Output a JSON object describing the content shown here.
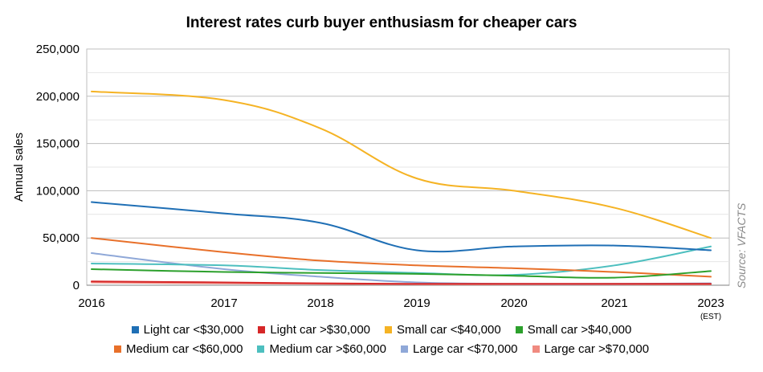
{
  "chart_data": {
    "type": "line",
    "title": "Interest rates curb buyer enthusiasm for cheaper cars",
    "ylabel": "Annual sales",
    "xlabel": "",
    "source": "Source: VFACTS",
    "ylim": [
      0,
      250000
    ],
    "yticks": [
      "0",
      "50,000",
      "100,000",
      "150,000",
      "200,000",
      "250,000"
    ],
    "ytick_values": [
      0,
      50000,
      100000,
      150000,
      200000,
      250000
    ],
    "x_categories": [
      "2016",
      "2017",
      "2018",
      "2019",
      "2020",
      "2021",
      "2023"
    ],
    "x_sublabel": "(EST)",
    "grid": true,
    "legend_position": "bottom",
    "series": [
      {
        "name": "Light car <$30,000",
        "color": "#1f6fb5",
        "values": [
          88000,
          76000,
          66000,
          37000,
          41000,
          42000,
          37000
        ]
      },
      {
        "name": "Light car >$30,000",
        "color": "#d62728",
        "values": [
          4000,
          3000,
          2000,
          1500,
          1500,
          1500,
          1500
        ]
      },
      {
        "name": "Small car <$40,000",
        "color": "#f5b324",
        "values": [
          205000,
          196000,
          166000,
          113000,
          100000,
          82000,
          50000
        ]
      },
      {
        "name": "Small car >$40,000",
        "color": "#2ca02c",
        "values": [
          17000,
          14000,
          13000,
          12000,
          10000,
          8000,
          15000
        ]
      },
      {
        "name": "Medium car <$60,000",
        "color": "#e8702a",
        "values": [
          50000,
          35000,
          26000,
          21000,
          18000,
          14000,
          9000
        ]
      },
      {
        "name": "Medium car >$60,000",
        "color": "#4dbfbf",
        "values": [
          23000,
          21000,
          16000,
          13000,
          11000,
          21000,
          41000
        ]
      },
      {
        "name": "Large car <$70,000",
        "color": "#8fa8d8",
        "values": [
          34000,
          17000,
          9000,
          3000,
          1500,
          1500,
          2000
        ]
      },
      {
        "name": "Large car >$70,000",
        "color": "#f08a80",
        "values": [
          3000,
          2000,
          1500,
          1000,
          1000,
          1000,
          1000
        ]
      }
    ]
  }
}
